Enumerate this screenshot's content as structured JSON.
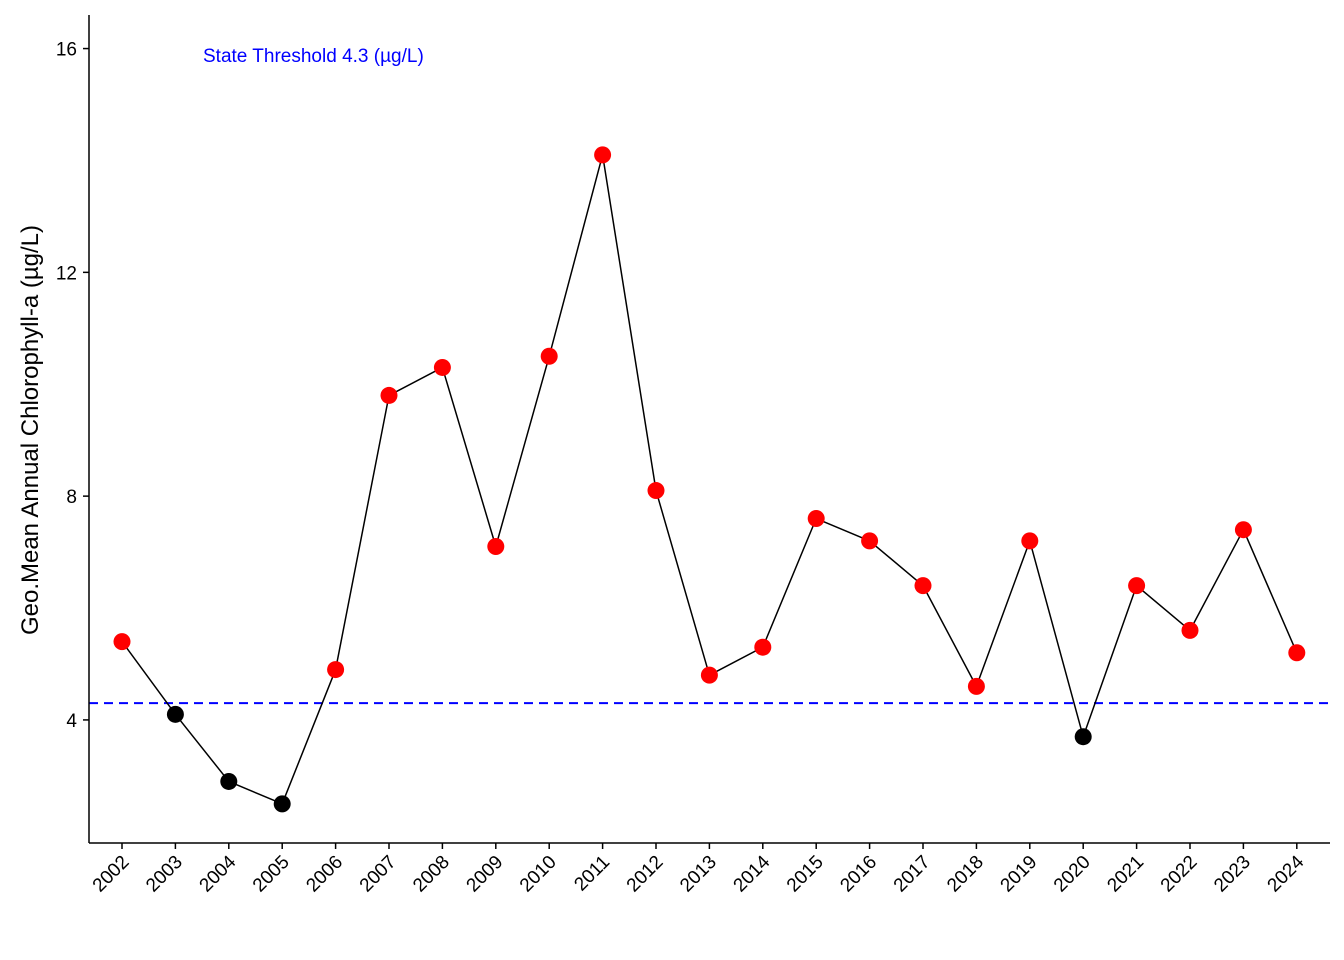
{
  "chart_data": {
    "type": "line",
    "title": "",
    "xlabel": "",
    "ylabel": "Geo.Mean Annual Chlorophyll-a (µg/L)",
    "categories": [
      "2002",
      "2003",
      "2004",
      "2005",
      "2006",
      "2007",
      "2008",
      "2009",
      "2010",
      "2011",
      "2012",
      "2013",
      "2014",
      "2015",
      "2016",
      "2017",
      "2018",
      "2019",
      "2020",
      "2021",
      "2022",
      "2023",
      "2024"
    ],
    "values": [
      5.4,
      4.1,
      2.9,
      2.5,
      4.9,
      9.8,
      10.3,
      7.1,
      10.5,
      14.1,
      8.1,
      4.8,
      5.3,
      7.6,
      7.2,
      6.4,
      4.6,
      7.2,
      3.7,
      6.4,
      5.6,
      7.4,
      5.2
    ],
    "yticks": [
      4,
      8,
      12,
      16
    ],
    "ylim": [
      1.8,
      16.6
    ],
    "threshold": {
      "value": 4.3,
      "label": "State Threshold 4.3 (µg/L)",
      "color": "#0000FF",
      "style": "dashed"
    },
    "colors": {
      "above_threshold": "#FF0000",
      "below_threshold": "#000000",
      "line": "#000000"
    },
    "grid": false,
    "legend": "none"
  }
}
